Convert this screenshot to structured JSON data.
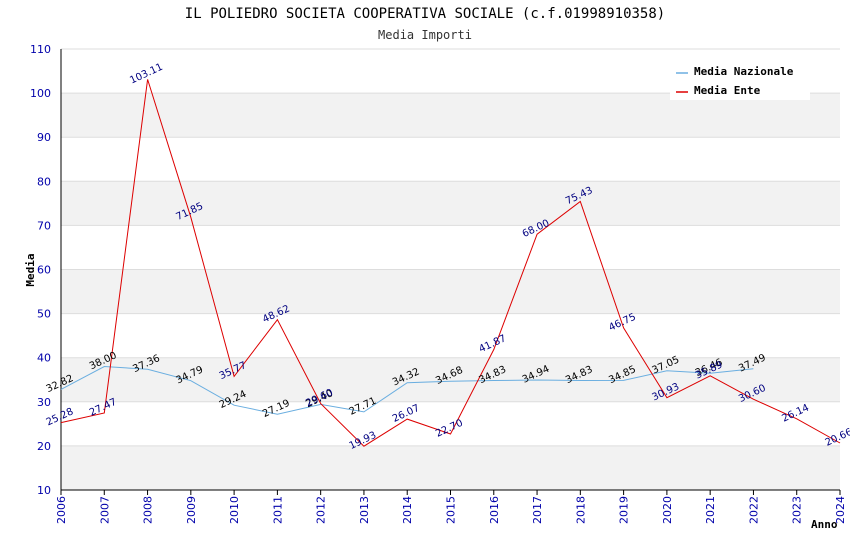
{
  "chart_data": {
    "type": "line",
    "title": "IL POLIEDRO SOCIETA COOPERATIVA SOCIALE (c.f.01998910358)",
    "subtitle": "Media Importi",
    "xlabel": "Anno",
    "ylabel": "Media",
    "ylim": [
      10,
      110
    ],
    "yticks": [
      "10",
      "20",
      "30",
      "40",
      "50",
      "60",
      "70",
      "80",
      "90",
      "100",
      "110"
    ],
    "x": [
      "2006",
      "2007",
      "2008",
      "2009",
      "2010",
      "2011",
      "2012",
      "2013",
      "2014",
      "2015",
      "2016",
      "2017",
      "2018",
      "2019",
      "2020",
      "2021",
      "2022",
      "2023",
      "2024"
    ],
    "grid": true,
    "legend_position": "top-right",
    "series": [
      {
        "name": "Media Nazionale",
        "color": "#6aaee0",
        "label_color": "#000000",
        "values": [
          32.82,
          38.0,
          37.36,
          34.79,
          29.24,
          27.19,
          29.4,
          27.71,
          34.32,
          34.68,
          34.83,
          34.94,
          34.83,
          34.85,
          37.05,
          36.46,
          37.49,
          null,
          null
        ],
        "labels": [
          "32.82",
          "38.00",
          "37.36",
          "34.79",
          "29.24",
          "27.19",
          "29.40",
          "27.71",
          "34.32",
          "34.68",
          "34.83",
          "34.94",
          "34.83",
          "34.85",
          "37.05",
          "36.46",
          "37.49",
          "",
          ""
        ]
      },
      {
        "name": "Media Ente",
        "color": "#dd0000",
        "label_color": "#000080",
        "values": [
          25.28,
          27.47,
          103.11,
          71.85,
          35.77,
          48.62,
          29.6,
          19.93,
          26.07,
          22.7,
          41.87,
          68.0,
          75.43,
          46.75,
          30.93,
          35.89,
          30.6,
          26.14,
          20.66
        ],
        "labels": [
          "25.28",
          "27.47",
          "103.11",
          "71.85",
          "35.77",
          "48.62",
          "29.60",
          "19.93",
          "26.07",
          "22.70",
          "41.87",
          "68.00",
          "75.43",
          "46.75",
          "30.93",
          "35.89",
          "30.60",
          "26.14",
          "20.66"
        ]
      }
    ]
  }
}
